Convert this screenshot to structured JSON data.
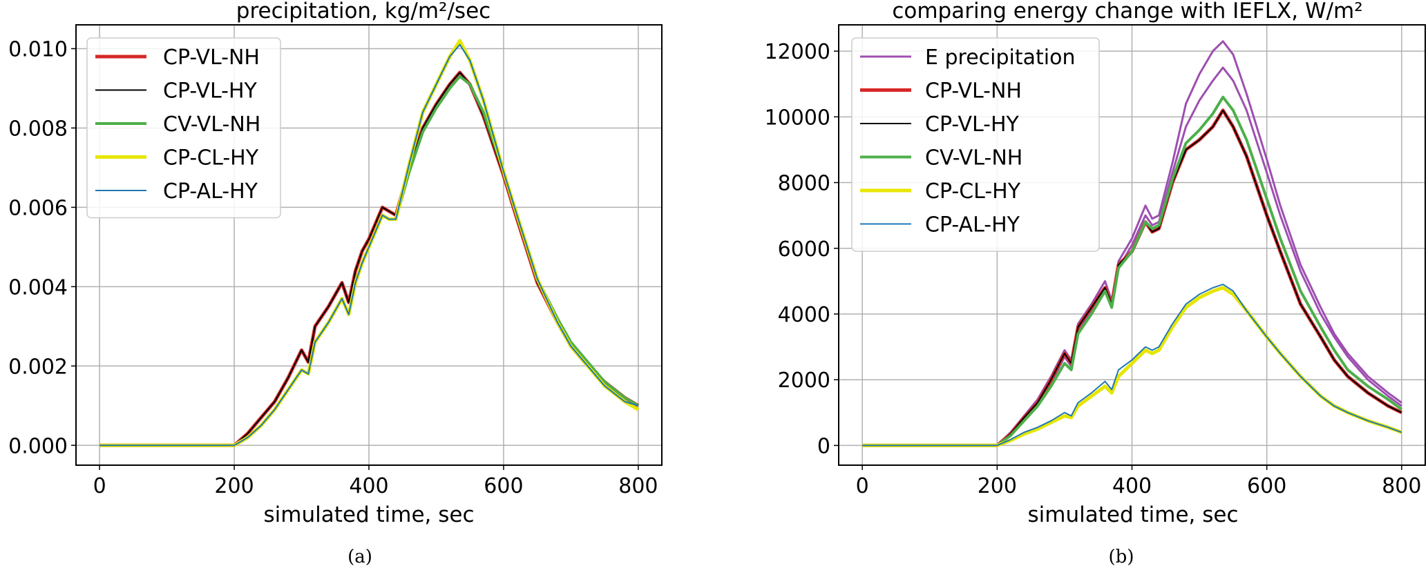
{
  "chart_data": [
    {
      "type": "line",
      "caption": "(a)",
      "title": "precipitation, kg/m²/sec",
      "xlabel": "simulated time, sec",
      "ylabel": "",
      "xlim": [
        -35,
        835
      ],
      "ylim": [
        -0.0005,
        0.0106
      ],
      "xticks": [
        0,
        200,
        400,
        600,
        800
      ],
      "xtick_labels": [
        "0",
        "200",
        "400",
        "600",
        "800"
      ],
      "yticks": [
        0,
        0.002,
        0.004,
        0.006,
        0.008,
        0.01
      ],
      "ytick_labels": [
        "0.000",
        "0.002",
        "0.004",
        "0.006",
        "0.008",
        "0.010"
      ],
      "grid": true,
      "legend_position": "top-left",
      "series": [
        {
          "name": "CP-VL-NH",
          "color": "#d62728",
          "width": 5,
          "x": [
            0,
            200,
            220,
            240,
            260,
            280,
            300,
            310,
            320,
            340,
            360,
            370,
            380,
            390,
            400,
            420,
            430,
            440,
            460,
            480,
            500,
            520,
            535,
            550,
            570,
            600,
            620,
            650,
            680,
            700,
            720,
            750,
            780,
            800
          ],
          "y": [
            0,
            0,
            0.0003,
            0.0007,
            0.0011,
            0.0017,
            0.0024,
            0.0021,
            0.003,
            0.0035,
            0.0041,
            0.0036,
            0.0044,
            0.0049,
            0.0052,
            0.006,
            0.0059,
            0.0058,
            0.007,
            0.008,
            0.0086,
            0.0091,
            0.0094,
            0.0091,
            0.0083,
            0.0068,
            0.0057,
            0.0041,
            0.0031,
            0.0025,
            0.0021,
            0.0016,
            0.0012,
            0.001
          ]
        },
        {
          "name": "CP-VL-HY",
          "color": "#000000",
          "width": 2,
          "x": [
            0,
            200,
            220,
            240,
            260,
            280,
            300,
            310,
            320,
            340,
            360,
            370,
            380,
            390,
            400,
            420,
            430,
            440,
            460,
            480,
            500,
            520,
            535,
            550,
            570,
            600,
            620,
            650,
            680,
            700,
            720,
            750,
            780,
            800
          ],
          "y": [
            0,
            0,
            0.0003,
            0.0007,
            0.0011,
            0.0017,
            0.0024,
            0.0021,
            0.003,
            0.0035,
            0.0041,
            0.0036,
            0.0044,
            0.0049,
            0.0052,
            0.006,
            0.0059,
            0.0058,
            0.007,
            0.008,
            0.0086,
            0.0091,
            0.0094,
            0.0091,
            0.0083,
            0.0068,
            0.0057,
            0.0041,
            0.0031,
            0.0025,
            0.0021,
            0.0016,
            0.0012,
            0.001
          ]
        },
        {
          "name": "CV-VL-NH",
          "color": "#4daf4a",
          "width": 4,
          "x": [
            0,
            200,
            220,
            240,
            260,
            280,
            300,
            310,
            320,
            340,
            360,
            370,
            380,
            390,
            400,
            420,
            430,
            440,
            460,
            480,
            500,
            520,
            535,
            550,
            570,
            600,
            620,
            650,
            680,
            700,
            720,
            750,
            780,
            800
          ],
          "y": [
            0,
            0,
            0.0002,
            0.0005,
            0.0009,
            0.0014,
            0.0019,
            0.0018,
            0.0026,
            0.0031,
            0.0037,
            0.0033,
            0.0041,
            0.0046,
            0.005,
            0.0058,
            0.0057,
            0.0057,
            0.0069,
            0.0079,
            0.0085,
            0.009,
            0.0093,
            0.0091,
            0.0084,
            0.0069,
            0.0058,
            0.0042,
            0.0032,
            0.0026,
            0.0022,
            0.0016,
            0.0012,
            0.001
          ]
        },
        {
          "name": "CP-CL-HY",
          "color": "#e6e600",
          "width": 5,
          "x": [
            0,
            200,
            220,
            240,
            260,
            280,
            300,
            310,
            320,
            340,
            360,
            370,
            380,
            390,
            400,
            420,
            430,
            440,
            460,
            480,
            500,
            520,
            535,
            550,
            570,
            600,
            620,
            650,
            680,
            700,
            720,
            750,
            780,
            800
          ],
          "y": [
            0,
            0,
            0.0002,
            0.0005,
            0.0009,
            0.0014,
            0.0019,
            0.0018,
            0.0026,
            0.0031,
            0.0037,
            0.0033,
            0.0041,
            0.0046,
            0.005,
            0.0058,
            0.0057,
            0.0057,
            0.0071,
            0.0084,
            0.0091,
            0.0098,
            0.0102,
            0.0097,
            0.0087,
            0.0069,
            0.0058,
            0.0042,
            0.0031,
            0.0025,
            0.0021,
            0.0015,
            0.0011,
            0.0009
          ]
        },
        {
          "name": "CP-AL-HY",
          "color": "#1f77b4",
          "width": 2,
          "x": [
            0,
            200,
            220,
            240,
            260,
            280,
            300,
            310,
            320,
            340,
            360,
            370,
            380,
            390,
            400,
            420,
            430,
            440,
            460,
            480,
            500,
            520,
            535,
            550,
            570,
            600,
            620,
            650,
            680,
            700,
            720,
            750,
            780,
            800
          ],
          "y": [
            0,
            0,
            0.0002,
            0.0005,
            0.0009,
            0.0014,
            0.0019,
            0.0018,
            0.0026,
            0.0031,
            0.0037,
            0.0033,
            0.0041,
            0.0046,
            0.005,
            0.0058,
            0.0057,
            0.0057,
            0.0071,
            0.0084,
            0.0091,
            0.0098,
            0.0101,
            0.0097,
            0.0087,
            0.0069,
            0.0058,
            0.0042,
            0.0031,
            0.0025,
            0.0021,
            0.0015,
            0.0011,
            0.001
          ]
        }
      ]
    },
    {
      "type": "line",
      "caption": "(b)",
      "title": "comparing energy change with IEFLX, W/m²",
      "xlabel": "simulated time, sec",
      "ylabel": "",
      "xlim": [
        -35,
        835
      ],
      "ylim": [
        -600,
        12800
      ],
      "xticks": [
        0,
        200,
        400,
        600,
        800
      ],
      "xtick_labels": [
        "0",
        "200",
        "400",
        "600",
        "800"
      ],
      "yticks": [
        0,
        2000,
        4000,
        6000,
        8000,
        10000,
        12000
      ],
      "ytick_labels": [
        "0",
        "2000",
        "4000",
        "6000",
        "8000",
        "10000",
        "12000"
      ],
      "grid": true,
      "legend_position": "top-left",
      "series": [
        {
          "name": "E precipitation",
          "color": "#9d4fb0",
          "width": 3,
          "x": [
            0,
            200,
            220,
            240,
            260,
            280,
            300,
            310,
            320,
            340,
            360,
            370,
            380,
            400,
            420,
            430,
            440,
            460,
            480,
            500,
            520,
            535,
            550,
            570,
            600,
            620,
            650,
            680,
            700,
            720,
            750,
            780,
            800
          ],
          "y": [
            0,
            0,
            400,
            900,
            1400,
            2100,
            2900,
            2600,
            3700,
            4300,
            5000,
            4400,
            5600,
            6300,
            7300,
            6900,
            7000,
            8600,
            10400,
            11300,
            12000,
            12300,
            11900,
            10700,
            8700,
            7300,
            5500,
            4200,
            3400,
            2800,
            2100,
            1600,
            1300
          ]
        },
        {
          "name": "",
          "color": "#9d4fb0",
          "width": 3,
          "x": [
            0,
            200,
            220,
            240,
            260,
            280,
            300,
            310,
            320,
            340,
            360,
            370,
            380,
            400,
            420,
            430,
            440,
            460,
            480,
            500,
            520,
            535,
            550,
            570,
            600,
            620,
            650,
            680,
            700,
            720,
            750,
            780,
            800
          ],
          "y": [
            0,
            0,
            300,
            800,
            1300,
            1900,
            2700,
            2400,
            3500,
            4100,
            4800,
            4200,
            5400,
            6100,
            7000,
            6700,
            6800,
            8300,
            9700,
            10500,
            11100,
            11500,
            11100,
            10200,
            8300,
            7000,
            5300,
            4000,
            3300,
            2700,
            2000,
            1500,
            1200
          ]
        },
        {
          "name": "CP-VL-NH",
          "color": "#d62728",
          "width": 5,
          "x": [
            0,
            200,
            220,
            240,
            260,
            280,
            300,
            310,
            320,
            340,
            360,
            370,
            380,
            400,
            420,
            430,
            440,
            460,
            480,
            500,
            520,
            535,
            550,
            570,
            600,
            620,
            650,
            680,
            700,
            720,
            750,
            780,
            800
          ],
          "y": [
            0,
            0,
            350,
            850,
            1300,
            2000,
            2800,
            2500,
            3600,
            4200,
            4800,
            4300,
            5500,
            5900,
            6800,
            6500,
            6600,
            8000,
            9000,
            9300,
            9700,
            10200,
            9700,
            8800,
            7000,
            5900,
            4300,
            3300,
            2600,
            2100,
            1600,
            1200,
            1000
          ]
        },
        {
          "name": "CP-VL-HY",
          "color": "#000000",
          "width": 2,
          "x": [
            0,
            200,
            220,
            240,
            260,
            280,
            300,
            310,
            320,
            340,
            360,
            370,
            380,
            400,
            420,
            430,
            440,
            460,
            480,
            500,
            520,
            535,
            550,
            570,
            600,
            620,
            650,
            680,
            700,
            720,
            750,
            780,
            800
          ],
          "y": [
            0,
            0,
            350,
            850,
            1300,
            2000,
            2800,
            2500,
            3600,
            4200,
            4800,
            4300,
            5500,
            5900,
            6800,
            6500,
            6600,
            8000,
            9000,
            9300,
            9700,
            10200,
            9700,
            8800,
            7000,
            5900,
            4300,
            3300,
            2600,
            2100,
            1600,
            1200,
            1000
          ]
        },
        {
          "name": "CV-VL-NH",
          "color": "#4daf4a",
          "width": 4,
          "x": [
            0,
            200,
            220,
            240,
            260,
            280,
            300,
            310,
            320,
            340,
            360,
            370,
            380,
            400,
            420,
            430,
            440,
            460,
            480,
            500,
            520,
            535,
            550,
            570,
            600,
            620,
            650,
            680,
            700,
            720,
            750,
            780,
            800
          ],
          "y": [
            0,
            0,
            300,
            750,
            1200,
            1800,
            2500,
            2300,
            3400,
            4000,
            4700,
            4200,
            5400,
            5900,
            6800,
            6600,
            6700,
            8100,
            9200,
            9600,
            10100,
            10600,
            10200,
            9300,
            7500,
            6300,
            4700,
            3600,
            2900,
            2300,
            1800,
            1400,
            1100
          ]
        },
        {
          "name": "CP-CL-HY",
          "color": "#e6e600",
          "width": 5,
          "x": [
            0,
            200,
            220,
            240,
            260,
            280,
            300,
            310,
            320,
            340,
            360,
            370,
            380,
            400,
            420,
            430,
            440,
            460,
            480,
            500,
            520,
            535,
            550,
            570,
            600,
            620,
            650,
            680,
            700,
            720,
            750,
            780,
            800
          ],
          "y": [
            0,
            0,
            150,
            350,
            500,
            700,
            900,
            850,
            1200,
            1500,
            1800,
            1600,
            2100,
            2500,
            2900,
            2800,
            2900,
            3600,
            4200,
            4500,
            4700,
            4800,
            4600,
            4100,
            3300,
            2800,
            2100,
            1500,
            1200,
            1000,
            750,
            550,
            400
          ]
        },
        {
          "name": "CP-AL-HY",
          "color": "#1f77b4",
          "width": 2,
          "x": [
            0,
            200,
            220,
            240,
            260,
            280,
            300,
            310,
            320,
            340,
            360,
            370,
            380,
            400,
            420,
            430,
            440,
            460,
            480,
            500,
            520,
            535,
            550,
            570,
            600,
            620,
            650,
            680,
            700,
            720,
            750,
            780,
            800
          ],
          "y": [
            0,
            0,
            180,
            400,
            550,
            750,
            1000,
            900,
            1300,
            1600,
            1950,
            1700,
            2300,
            2600,
            3000,
            2900,
            3000,
            3700,
            4300,
            4600,
            4800,
            4900,
            4700,
            4100,
            3300,
            2800,
            2100,
            1500,
            1200,
            1000,
            750,
            550,
            400
          ]
        }
      ]
    }
  ]
}
